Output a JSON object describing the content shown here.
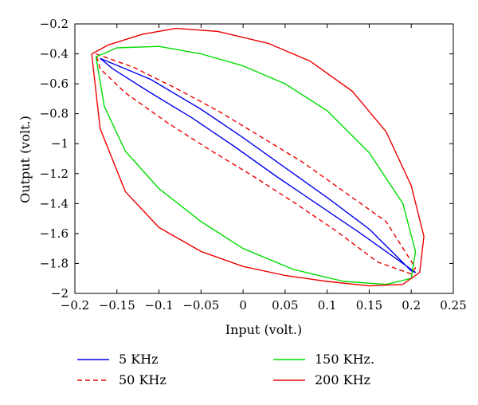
{
  "chart_data": {
    "type": "line",
    "title": "",
    "xlabel": "Input (volt.)",
    "ylabel": "Output (volt.)",
    "xlim": [
      -0.2,
      0.25
    ],
    "ylim": [
      -2,
      -0.2
    ],
    "grid": false,
    "legend_placement": "bottom",
    "x_ticks": [
      -0.2,
      -0.15,
      -0.1,
      -0.05,
      0,
      0.05,
      0.1,
      0.15,
      0.2,
      0.25
    ],
    "x_tick_labels": [
      "−0.2",
      "−0.15",
      "−0.1",
      "−0.05",
      "0",
      "0.05",
      "0.1",
      "0.15",
      "0.2",
      "0.25"
    ],
    "y_ticks": [
      -0.2,
      -0.4,
      -0.6,
      -0.8,
      -1,
      -1.2,
      -1.4,
      -1.6,
      -1.8,
      -2
    ],
    "y_tick_labels": [
      "−0.2",
      "−0.4",
      "−0.6",
      "−0.8",
      "−1",
      "−1.2",
      "−1.4",
      "−1.6",
      "−1.8",
      "−2"
    ],
    "series": [
      {
        "name": "5 KHz",
        "color": "#0000ee",
        "dash": "solid",
        "x": [
          -0.17,
          -0.11,
          -0.05,
          0.0,
          0.05,
          0.1,
          0.15,
          0.2,
          0.205,
          0.19,
          0.14,
          0.09,
          0.04,
          -0.01,
          -0.06,
          -0.11,
          -0.155,
          -0.17
        ],
        "y": [
          -0.43,
          -0.57,
          -0.77,
          -0.96,
          -1.16,
          -1.36,
          -1.57,
          -1.85,
          -1.86,
          -1.8,
          -1.6,
          -1.41,
          -1.22,
          -1.02,
          -0.83,
          -0.66,
          -0.5,
          -0.43
        ]
      },
      {
        "name": "50 KHz",
        "color": "#ee0000",
        "dash": "dashed",
        "x": [
          -0.175,
          -0.13,
          -0.08,
          -0.03,
          0.02,
          0.07,
          0.12,
          0.17,
          0.205,
          0.2,
          0.16,
          0.11,
          0.06,
          0.01,
          -0.04,
          -0.09,
          -0.14,
          -0.17,
          -0.175
        ],
        "y": [
          -0.4,
          -0.49,
          -0.63,
          -0.78,
          -0.95,
          -1.12,
          -1.32,
          -1.52,
          -1.83,
          -1.87,
          -1.79,
          -1.58,
          -1.39,
          -1.21,
          -1.04,
          -0.86,
          -0.66,
          -0.5,
          -0.4
        ]
      },
      {
        "name": "150 KHz.",
        "color": "#00dd00",
        "dash": "solid",
        "x": [
          -0.175,
          -0.15,
          -0.1,
          -0.05,
          0.0,
          0.05,
          0.1,
          0.15,
          0.19,
          0.205,
          0.2,
          0.17,
          0.12,
          0.06,
          0.0,
          -0.05,
          -0.1,
          -0.14,
          -0.165,
          -0.175
        ],
        "y": [
          -0.42,
          -0.36,
          -0.35,
          -0.4,
          -0.48,
          -0.6,
          -0.78,
          -1.06,
          -1.4,
          -1.72,
          -1.9,
          -1.94,
          -1.92,
          -1.84,
          -1.7,
          -1.52,
          -1.3,
          -1.05,
          -0.75,
          -0.42
        ]
      },
      {
        "name": "200 KHz",
        "color": "#ee0000",
        "dash": "solid",
        "x": [
          -0.18,
          -0.16,
          -0.12,
          -0.08,
          -0.03,
          0.03,
          0.08,
          0.13,
          0.17,
          0.2,
          0.215,
          0.21,
          0.19,
          0.15,
          0.1,
          0.05,
          0.0,
          -0.05,
          -0.1,
          -0.14,
          -0.17,
          -0.18
        ],
        "y": [
          -0.4,
          -0.34,
          -0.27,
          -0.23,
          -0.25,
          -0.33,
          -0.45,
          -0.65,
          -0.92,
          -1.28,
          -1.62,
          -1.86,
          -1.94,
          -1.95,
          -1.92,
          -1.88,
          -1.82,
          -1.72,
          -1.56,
          -1.32,
          -0.9,
          -0.4
        ]
      }
    ]
  }
}
